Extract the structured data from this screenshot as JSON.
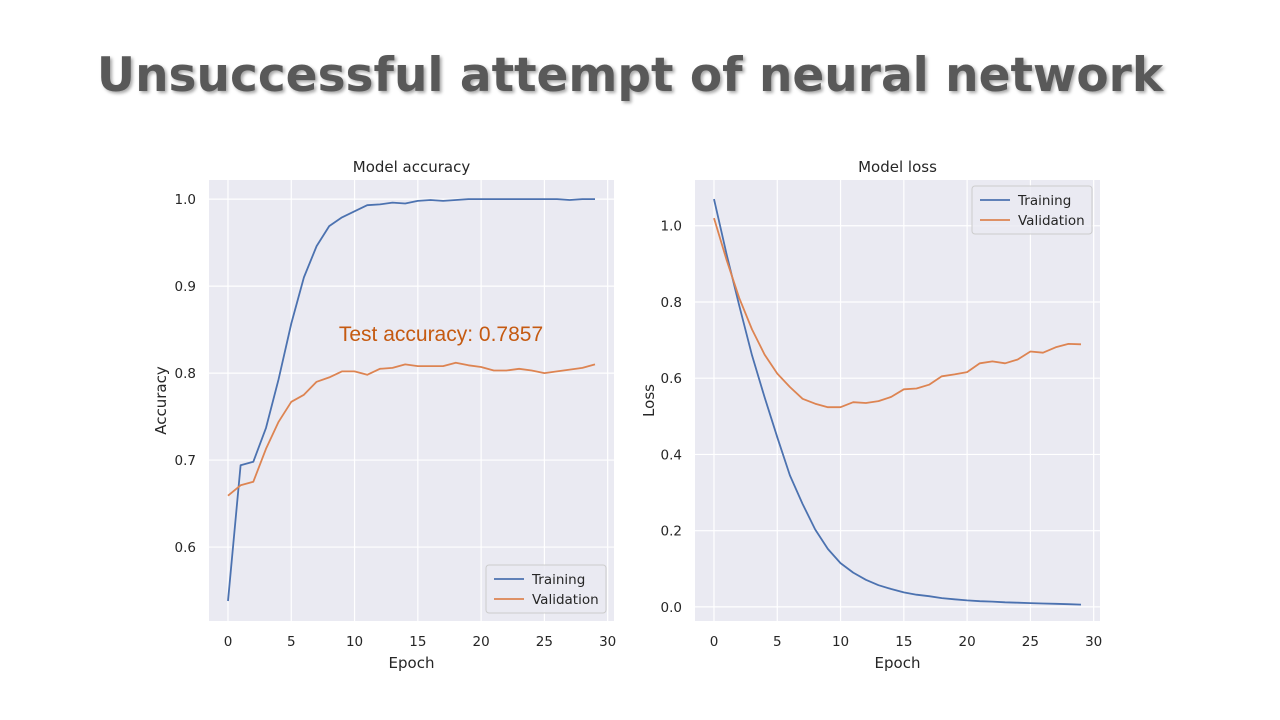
{
  "slide": {
    "title": "Unsuccessful attempt of neural network"
  },
  "colors": {
    "training": "#4c72b0",
    "validation": "#dd8452",
    "plot_background": "#eaeaf2",
    "grid": "#ffffff",
    "annotation": "#c55a11",
    "title_text": "#595959"
  },
  "chart_data": [
    {
      "type": "line",
      "title": "Model accuracy",
      "xlabel": "Epoch",
      "ylabel": "Accuracy",
      "xlim": [
        -1.5,
        30.5
      ],
      "ylim": [
        0.515,
        1.022
      ],
      "xticks": [
        0,
        5,
        10,
        15,
        20,
        25,
        30
      ],
      "yticks": [
        0.6,
        0.7,
        0.8,
        0.9,
        1.0
      ],
      "ytick_labels": [
        "0.6",
        "0.7",
        "0.8",
        "0.9",
        "1.0"
      ],
      "grid": true,
      "legend_position": "lower-right",
      "annotation": "Test accuracy: 0.7857",
      "series": [
        {
          "name": "Training",
          "color_key": "training",
          "x": [
            0,
            1,
            2,
            3,
            4,
            5,
            6,
            7,
            8,
            9,
            10,
            11,
            12,
            13,
            14,
            15,
            16,
            17,
            18,
            19,
            20,
            21,
            22,
            23,
            24,
            25,
            26,
            27,
            28,
            29
          ],
          "values": [
            0.538,
            0.694,
            0.698,
            0.737,
            0.793,
            0.857,
            0.91,
            0.946,
            0.969,
            0.979,
            0.986,
            0.993,
            0.994,
            0.996,
            0.995,
            0.998,
            0.999,
            0.998,
            0.999,
            1.0,
            1.0,
            1.0,
            1.0,
            1.0,
            1.0,
            1.0,
            1.0,
            0.999,
            1.0,
            1.0
          ]
        },
        {
          "name": "Validation",
          "color_key": "validation",
          "x": [
            0,
            1,
            2,
            3,
            4,
            5,
            6,
            7,
            8,
            9,
            10,
            11,
            12,
            13,
            14,
            15,
            16,
            17,
            18,
            19,
            20,
            21,
            22,
            23,
            24,
            25,
            26,
            27,
            28,
            29
          ],
          "values": [
            0.659,
            0.671,
            0.675,
            0.713,
            0.744,
            0.767,
            0.775,
            0.79,
            0.795,
            0.802,
            0.802,
            0.798,
            0.805,
            0.806,
            0.81,
            0.808,
            0.808,
            0.808,
            0.812,
            0.809,
            0.807,
            0.803,
            0.803,
            0.805,
            0.803,
            0.8,
            0.802,
            0.804,
            0.806,
            0.81
          ]
        }
      ]
    },
    {
      "type": "line",
      "title": "Model loss",
      "xlabel": "Epoch",
      "ylabel": "Loss",
      "xlim": [
        -1.5,
        30.5
      ],
      "ylim": [
        -0.037,
        1.12
      ],
      "xticks": [
        0,
        5,
        10,
        15,
        20,
        25,
        30
      ],
      "yticks": [
        0.0,
        0.2,
        0.4,
        0.6,
        0.8,
        1.0
      ],
      "ytick_labels": [
        "0.0",
        "0.2",
        "0.4",
        "0.6",
        "0.8",
        "1.0"
      ],
      "grid": true,
      "legend_position": "upper-right",
      "series": [
        {
          "name": "Training",
          "color_key": "training",
          "x": [
            0,
            1,
            2,
            3,
            4,
            5,
            6,
            7,
            8,
            9,
            10,
            11,
            12,
            13,
            14,
            15,
            16,
            17,
            18,
            19,
            20,
            21,
            22,
            23,
            24,
            25,
            26,
            27,
            28,
            29
          ],
          "values": [
            1.07,
            0.925,
            0.79,
            0.66,
            0.55,
            0.445,
            0.345,
            0.27,
            0.203,
            0.152,
            0.115,
            0.09,
            0.071,
            0.057,
            0.047,
            0.038,
            0.032,
            0.028,
            0.023,
            0.02,
            0.017,
            0.015,
            0.014,
            0.012,
            0.011,
            0.01,
            0.009,
            0.008,
            0.007,
            0.006
          ]
        },
        {
          "name": "Validation",
          "color_key": "validation",
          "x": [
            0,
            1,
            2,
            3,
            4,
            5,
            6,
            7,
            8,
            9,
            10,
            11,
            12,
            13,
            14,
            15,
            16,
            17,
            18,
            19,
            20,
            21,
            22,
            23,
            24,
            25,
            26,
            27,
            28,
            29
          ],
          "values": [
            1.02,
            0.91,
            0.81,
            0.728,
            0.662,
            0.612,
            0.577,
            0.546,
            0.533,
            0.524,
            0.524,
            0.537,
            0.535,
            0.54,
            0.551,
            0.571,
            0.573,
            0.583,
            0.605,
            0.61,
            0.616,
            0.639,
            0.644,
            0.639,
            0.649,
            0.67,
            0.667,
            0.681,
            0.69,
            0.689
          ]
        }
      ]
    }
  ]
}
